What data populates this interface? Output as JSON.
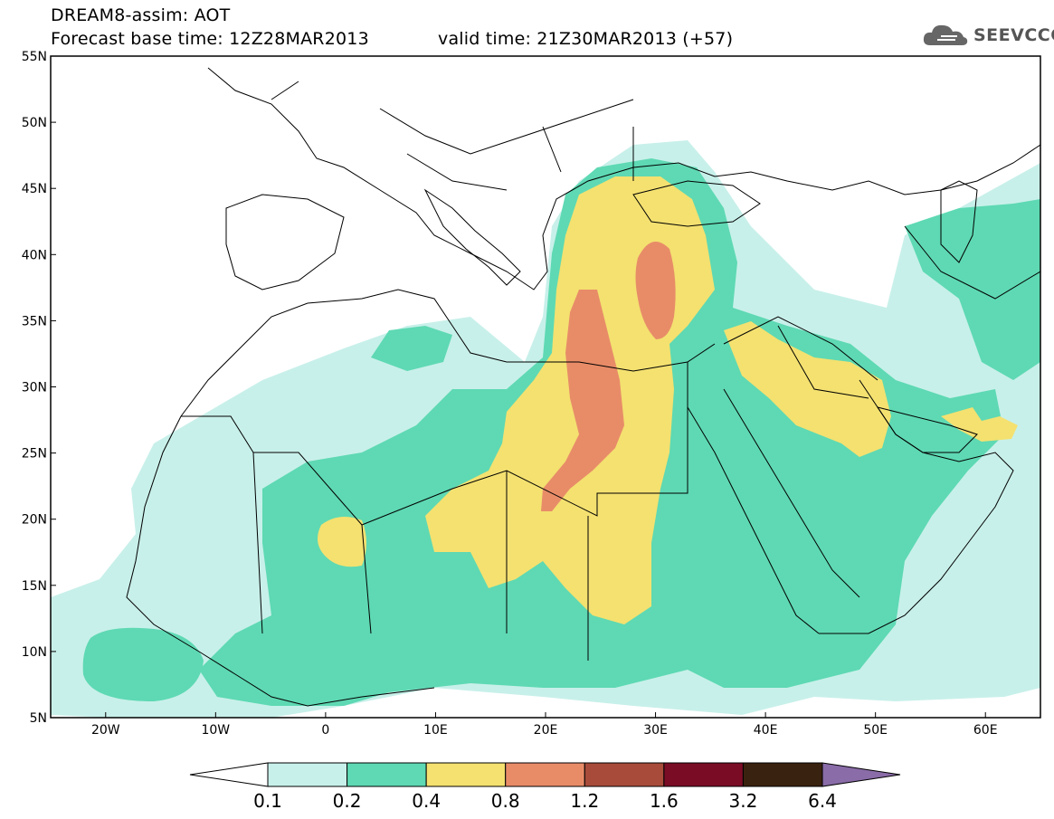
{
  "header": {
    "title": "DREAM8-assim: AOT",
    "base_time": "Forecast base time: 12Z28MAR2013",
    "valid_time": "valid time: 21Z30MAR2013 (+57)"
  },
  "logo": {
    "text": "SEEVCCC",
    "icon": "cloud-icon"
  },
  "map": {
    "lat_labels": [
      "55N",
      "50N",
      "45N",
      "40N",
      "35N",
      "30N",
      "25N",
      "20N",
      "15N",
      "10N",
      "5N"
    ],
    "lon_labels": [
      "20W",
      "10W",
      "0",
      "10E",
      "20E",
      "30E",
      "40E",
      "50E",
      "60E"
    ],
    "lon_range": [
      -25,
      65
    ],
    "lat_range": [
      5,
      55
    ]
  },
  "colorbar": {
    "labels": [
      "0.1",
      "0.2",
      "0.4",
      "0.8",
      "1.2",
      "1.6",
      "3.2",
      "6.4"
    ],
    "colors": [
      "#ffffff",
      "#c8f0ea",
      "#5ed9b3",
      "#f4e170",
      "#e88c68",
      "#a84b3a",
      "#7a0c26",
      "#3a2210",
      "#8a6ca8"
    ]
  }
}
